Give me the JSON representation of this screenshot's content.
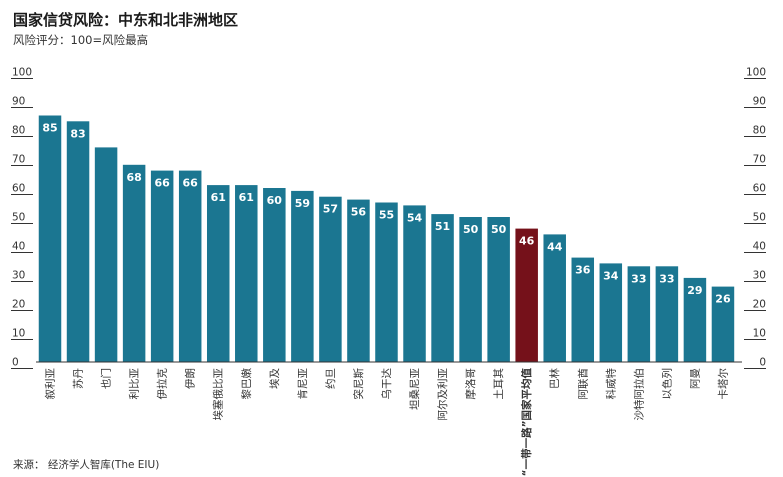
{
  "title": "国家信贷风险：中东和北非洲地区",
  "subtitle": "风险评分：100=风险最高",
  "source": "来源： 经济学人智库(The EIU)",
  "colors": {
    "bar": "#1b7691",
    "highlight": "#75111a",
    "grid": "#dcdcdc",
    "axis": "#333333",
    "value_label": "#ffffff"
  },
  "chart_data": {
    "type": "bar",
    "title": "国家信贷风险：中东和北非洲地区",
    "xlabel": "",
    "ylabel": "",
    "ylim": [
      0,
      100
    ],
    "yticks": [
      0,
      10,
      20,
      30,
      40,
      50,
      60,
      70,
      80,
      90,
      100
    ],
    "y_axis_both_sides": true,
    "grid": false,
    "categories": [
      "叙利亚",
      "苏丹",
      "也门",
      "利比亚",
      "伊拉克",
      "伊朗",
      "埃塞俄比亚",
      "黎巴嫩",
      "埃及",
      "肯尼亚",
      "约旦",
      "突尼斯",
      "乌干达",
      "坦桑尼亚",
      "阿尔及利亚",
      "摩洛哥",
      "土耳其",
      "“一带一路”国家平均值",
      "巴林",
      "阿联酋",
      "科威特",
      "沙特阿拉伯",
      "以色列",
      "阿曼",
      "卡塔尔"
    ],
    "values": [
      85,
      83,
      74,
      68,
      66,
      66,
      61,
      61,
      60,
      59,
      57,
      56,
      55,
      54,
      51,
      50,
      50,
      46,
      44,
      36,
      34,
      33,
      33,
      29,
      26
    ],
    "value_labels_shown": [
      true,
      true,
      false,
      true,
      true,
      true,
      true,
      true,
      true,
      true,
      true,
      true,
      true,
      true,
      true,
      true,
      true,
      true,
      true,
      true,
      true,
      true,
      true,
      true,
      true
    ],
    "highlight_index": 17
  }
}
